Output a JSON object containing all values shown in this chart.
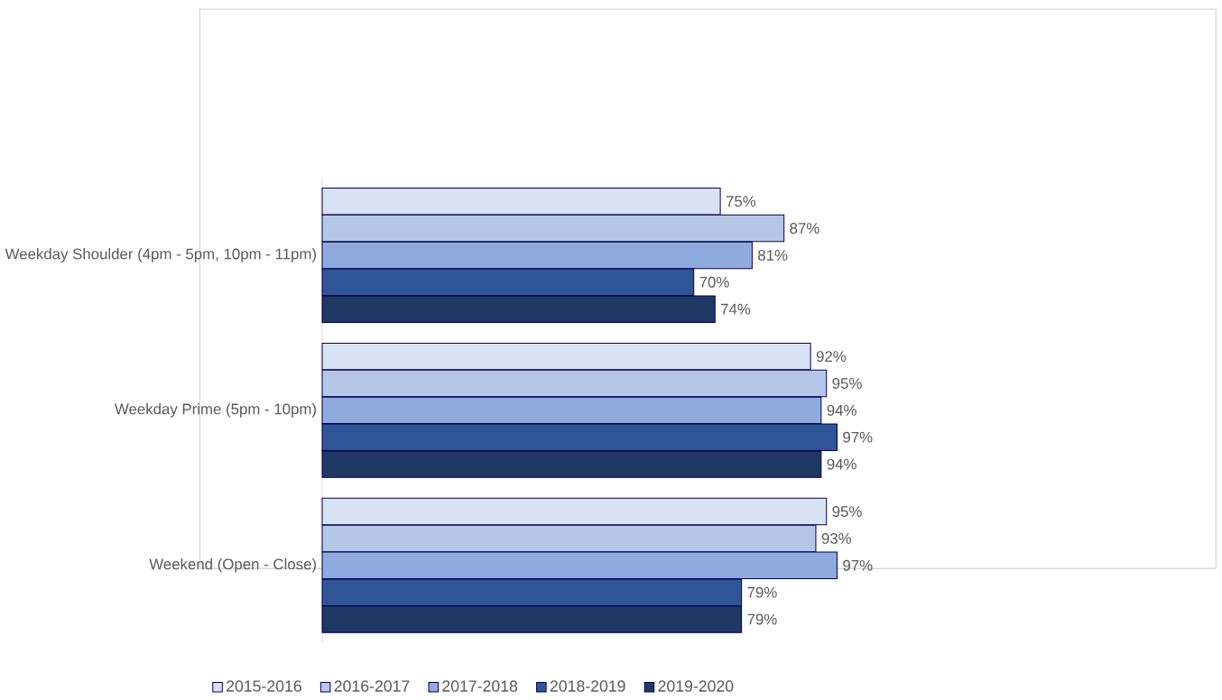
{
  "chart_data": {
    "type": "bar",
    "orientation": "horizontal",
    "categories": [
      "Weekday Shoulder (4pm - 5pm, 10pm - 11pm)",
      "Weekday Prime (5pm - 10pm)",
      "Weekend (Open - Close)"
    ],
    "legend": "bottom",
    "series": [
      {
        "name": "2015-2016",
        "color": "#dae3f3",
        "values": [
          75,
          92,
          95
        ],
        "value_labels": [
          "75%",
          "92%",
          "95%"
        ]
      },
      {
        "name": "2016-2017",
        "color": "#b4c7e7",
        "values": [
          87,
          95,
          93
        ],
        "value_labels": [
          "87%",
          "95%",
          "93%"
        ]
      },
      {
        "name": "2017-2018",
        "color": "#8faadc",
        "values": [
          81,
          94,
          97
        ],
        "value_labels": [
          "81%",
          "94%",
          "97%"
        ]
      },
      {
        "name": "2018-2019",
        "color": "#2f5597",
        "values": [
          70,
          97,
          79
        ],
        "value_labels": [
          "70%",
          "97%",
          "79%"
        ]
      },
      {
        "name": "2019-2020",
        "color": "#203864",
        "values": [
          74,
          94,
          79
        ],
        "value_labels": [
          "74%",
          "94%",
          "79%"
        ]
      }
    ]
  }
}
